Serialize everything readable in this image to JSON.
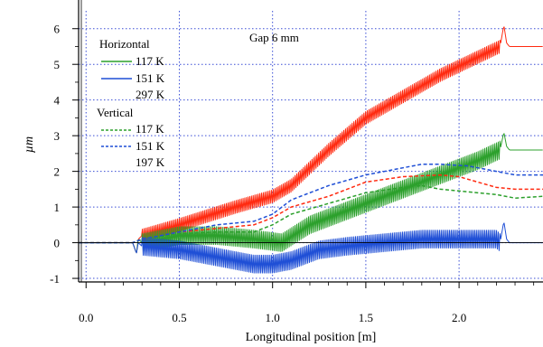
{
  "chart_data": {
    "type": "line",
    "title": "",
    "xlabel": "Longitudinal position [m]",
    "ylabel": "µm",
    "xlim": [
      -0.04,
      2.45
    ],
    "ylim": [
      -1.1,
      6.5
    ],
    "x_ticks": [
      0.0,
      0.5,
      1.0,
      1.5,
      2.0
    ],
    "x_tick_labels": [
      "0.0",
      "0.5",
      "1.0",
      "1.5",
      "2.0"
    ],
    "y_ticks": [
      -1,
      0,
      1,
      2,
      3,
      4,
      5,
      6
    ],
    "y_tick_labels": [
      "-1",
      "0",
      "1",
      "2",
      "3",
      "4",
      "5",
      "6"
    ],
    "grid": true,
    "annotation": "Gap 6 mm",
    "legend": {
      "placement": "top-left",
      "groups": [
        {
          "title": "Horizontal",
          "entries": [
            {
              "label": "117 K",
              "color": "#2ca02c",
              "dash": "solid"
            },
            {
              "label": "151 K",
              "color": "#1f4fd6",
              "dash": "solid"
            },
            {
              "label": "297 K",
              "color": "#ff2a10",
              "dash": "solid"
            }
          ]
        },
        {
          "title": "Vertical",
          "entries": [
            {
              "label": "117 K",
              "color": "#2ca02c",
              "dash": "dashed"
            },
            {
              "label": "151 K",
              "color": "#1f4fd6",
              "dash": "dashed"
            },
            {
              "label": "197 K",
              "color": "#ff2a10",
              "dash": "dashed"
            }
          ]
        }
      ]
    },
    "series": [
      {
        "group": "Horizontal",
        "label": "297 K",
        "color": "#ff2a10",
        "dash": "solid",
        "oscillation": 0.18,
        "x": [
          -0.04,
          0.25,
          0.27,
          0.28,
          0.3,
          0.5,
          0.8,
          1.0,
          1.1,
          1.3,
          1.5,
          1.7,
          1.9,
          2.1,
          2.22,
          2.24,
          2.255,
          2.27,
          2.45
        ],
        "y": [
          0.0,
          0.0,
          -0.3,
          0.1,
          0.2,
          0.5,
          1.0,
          1.3,
          1.6,
          2.6,
          3.5,
          4.1,
          4.7,
          5.2,
          5.5,
          6.1,
          5.6,
          5.5,
          5.5
        ]
      },
      {
        "group": "Horizontal",
        "label": "117 K",
        "color": "#2ca02c",
        "dash": "solid",
        "oscillation": 0.25,
        "x": [
          -0.04,
          0.25,
          0.27,
          0.28,
          0.3,
          0.5,
          0.7,
          0.9,
          1.05,
          1.2,
          1.4,
          1.6,
          1.8,
          2.0,
          2.1,
          2.22,
          2.24,
          2.255,
          2.27,
          2.45
        ],
        "y": [
          0.0,
          0.0,
          -0.3,
          0.1,
          0.0,
          0.2,
          0.2,
          0.1,
          0.0,
          0.5,
          0.9,
          1.3,
          1.7,
          2.1,
          2.3,
          2.6,
          3.1,
          2.7,
          2.6,
          2.6
        ]
      },
      {
        "group": "Horizontal",
        "label": "151 K",
        "color": "#1f4fd6",
        "dash": "solid",
        "oscillation": 0.25,
        "x": [
          -0.04,
          0.25,
          0.27,
          0.28,
          0.3,
          0.5,
          0.7,
          0.9,
          1.0,
          1.1,
          1.25,
          1.4,
          1.6,
          1.8,
          2.0,
          2.2,
          2.22,
          2.24,
          2.255,
          2.27,
          2.45
        ],
        "y": [
          0.0,
          0.0,
          -0.3,
          0.0,
          -0.1,
          -0.2,
          -0.4,
          -0.6,
          -0.6,
          -0.5,
          -0.2,
          -0.1,
          0.0,
          0.1,
          0.1,
          0.1,
          0.0,
          0.6,
          0.1,
          0.0,
          0.0
        ]
      },
      {
        "group": "Vertical",
        "label": "197 K",
        "color": "#ff2a10",
        "dash": "dashed",
        "oscillation": 0,
        "x": [
          -0.04,
          0.25,
          0.3,
          0.5,
          0.7,
          0.9,
          1.0,
          1.1,
          1.3,
          1.5,
          1.7,
          1.9,
          2.0,
          2.1,
          2.2,
          2.3,
          2.45
        ],
        "y": [
          0.0,
          0.0,
          0.1,
          0.3,
          0.4,
          0.5,
          0.7,
          1.0,
          1.3,
          1.7,
          1.85,
          1.9,
          1.85,
          1.7,
          1.55,
          1.5,
          1.5
        ]
      },
      {
        "group": "Vertical",
        "label": "117 K",
        "color": "#2ca02c",
        "dash": "dashed",
        "oscillation": 0,
        "x": [
          -0.04,
          0.25,
          0.3,
          0.5,
          0.7,
          0.9,
          1.0,
          1.1,
          1.3,
          1.5,
          1.7,
          1.8,
          1.9,
          2.1,
          2.2,
          2.3,
          2.45
        ],
        "y": [
          0.0,
          0.0,
          0.1,
          0.25,
          0.3,
          0.3,
          0.5,
          0.8,
          1.1,
          1.4,
          1.55,
          1.6,
          1.5,
          1.4,
          1.35,
          1.25,
          1.3
        ]
      },
      {
        "group": "Vertical",
        "label": "151 K",
        "color": "#1f4fd6",
        "dash": "dashed",
        "oscillation": 0,
        "x": [
          -0.04,
          0.25,
          0.3,
          0.5,
          0.7,
          0.9,
          1.0,
          1.1,
          1.3,
          1.5,
          1.7,
          1.8,
          1.9,
          2.05,
          2.2,
          2.3,
          2.45
        ],
        "y": [
          0.0,
          0.0,
          0.1,
          0.3,
          0.5,
          0.6,
          0.8,
          1.2,
          1.6,
          1.9,
          2.1,
          2.2,
          2.2,
          2.15,
          2.0,
          1.9,
          1.9
        ]
      }
    ]
  }
}
